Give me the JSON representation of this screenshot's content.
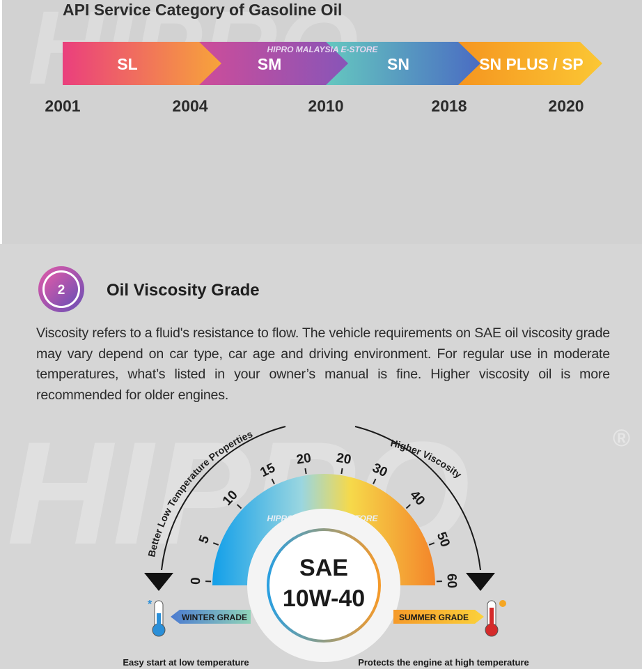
{
  "watermark": "HIPRO",
  "registered": "®",
  "store_watermark": "HIPRO MALAYSIA E-STORE",
  "api": {
    "title": "API Service Category of Gasoline Oil",
    "categories": [
      "SL",
      "SM",
      "SN",
      "SN PLUS / SP"
    ],
    "years": [
      "2001",
      "2004",
      "2010",
      "2018",
      "2020"
    ]
  },
  "viscosity": {
    "number": "2",
    "title": "Oil Viscosity Grade",
    "paragraph": "Viscosity refers to a fluid's resistance to flow. The vehicle requirements on SAE oil viscosity grade may vary depend on car type, car age and driving environment. For regular use in moderate temperatures, what’s listed in your owner’s manual is fine. Higher viscosity oil is more recommended for older engines."
  },
  "gauge": {
    "left_arc_label": "Better Low Temperature Properties",
    "right_arc_label": "Higher Viscosity",
    "winter_ticks": [
      "0",
      "5",
      "10",
      "15",
      "20"
    ],
    "summer_ticks": [
      "20",
      "30",
      "40",
      "50",
      "60"
    ],
    "center_top": "SAE",
    "center_bottom": "10W-40",
    "winter_label": "WINTER GRADE",
    "summer_label": "SUMMER GRADE",
    "winter_caption": "Easy start at low temperature",
    "summer_caption": "Protects the engine at high temperature"
  }
}
